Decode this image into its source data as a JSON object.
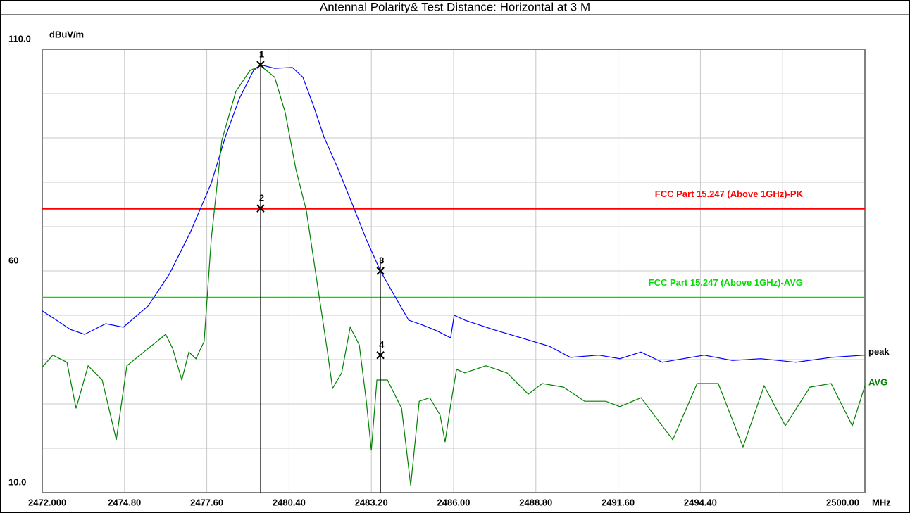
{
  "chart_data": {
    "type": "line",
    "title": "Antennal Polarity& Test Distance: Horizontal at 3 M",
    "y_unit": "dBuV/m",
    "x_unit": "MHz",
    "xlim": [
      2472,
      2500
    ],
    "ylim": [
      10,
      110
    ],
    "xticks": [
      {
        "value": 2472,
        "label": "2472.000"
      },
      {
        "value": 2474.8,
        "label": "2474.80"
      },
      {
        "value": 2477.6,
        "label": "2477.60"
      },
      {
        "value": 2480.4,
        "label": "2480.40"
      },
      {
        "value": 2483.2,
        "label": "2483.20"
      },
      {
        "value": 2486,
        "label": "2486.00"
      },
      {
        "value": 2488.8,
        "label": "2488.80"
      },
      {
        "value": 2491.6,
        "label": "2491.60"
      },
      {
        "value": 2494.4,
        "label": "2494.40"
      },
      {
        "value": 2500,
        "label": "2500.00"
      }
    ],
    "xgrid": [
      2474.8,
      2477.6,
      2480.4,
      2483.2,
      2486,
      2488.8,
      2491.6,
      2494.4,
      2497.2
    ],
    "yticks": [
      {
        "value": 10,
        "label": "10.0"
      },
      60,
      {
        "value": 110,
        "label": "110.0"
      }
    ],
    "ygrid": [
      20,
      30,
      40,
      50,
      60,
      70,
      80,
      90,
      100
    ],
    "grid": true,
    "limits": [
      {
        "name": "FCC Part 15.247 (Above 1GHz)-PK",
        "color": "#ff0000",
        "value": 74
      },
      {
        "name": "FCC Part 15.247 (Above 1GHz)-AVG",
        "color": "#00e000",
        "value": 54
      }
    ],
    "series": [
      {
        "name": "peak",
        "color": "#0000ff",
        "x": [
          2472.0,
          2472.48,
          2472.96,
          2473.44,
          2474.16,
          2474.76,
          2475.6,
          2476.32,
          2477.04,
          2477.75,
          2478.23,
          2478.71,
          2479.19,
          2479.43,
          2479.91,
          2480.51,
          2480.87,
          2481.23,
          2481.59,
          2482.07,
          2482.55,
          2483.03,
          2483.51,
          2483.99,
          2484.47,
          2484.95,
          2485.43,
          2485.9,
          2486.02,
          2486.38,
          2487.34,
          2488.3,
          2489.26,
          2489.98,
          2490.94,
          2491.66,
          2492.38,
          2493.1,
          2493.82,
          2494.53,
          2495.49,
          2496.45,
          2497.65,
          2498.85,
          2500.0
        ],
        "values": [
          51.0,
          48.9,
          46.8,
          45.7,
          48.1,
          47.3,
          52.1,
          59.2,
          68.7,
          79.8,
          90.2,
          98.9,
          105.2,
          106.5,
          105.7,
          105.9,
          103.7,
          97.3,
          90.2,
          83.0,
          75.1,
          67.1,
          60.0,
          54.4,
          48.9,
          47.8,
          46.5,
          44.9,
          50.0,
          48.9,
          46.8,
          44.9,
          43.0,
          40.5,
          41.0,
          40.2,
          41.7,
          39.4,
          40.2,
          41.0,
          39.8,
          40.2,
          39.4,
          40.5,
          41.0
        ]
      },
      {
        "name": "AVG",
        "color": "#008000",
        "x": [
          2472.0,
          2472.36,
          2472.84,
          2473.15,
          2473.56,
          2474.04,
          2474.52,
          2474.88,
          2475.6,
          2476.2,
          2476.44,
          2476.75,
          2476.99,
          2477.23,
          2477.51,
          2477.75,
          2478.11,
          2478.59,
          2479.07,
          2479.43,
          2479.91,
          2480.27,
          2480.63,
          2480.99,
          2481.35,
          2481.71,
          2481.88,
          2482.19,
          2482.48,
          2482.79,
          2483.03,
          2483.2,
          2483.39,
          2483.75,
          2484.23,
          2484.54,
          2484.83,
          2485.19,
          2485.54,
          2485.71,
          2485.9,
          2486.1,
          2486.38,
          2487.1,
          2487.82,
          2488.54,
          2489.02,
          2489.74,
          2490.46,
          2491.18,
          2491.66,
          2492.38,
          2493.46,
          2494.29,
          2495.01,
          2495.85,
          2496.57,
          2497.29,
          2498.13,
          2498.85,
          2499.57,
          2500.0
        ],
        "values": [
          38.3,
          41.0,
          39.4,
          29.0,
          38.6,
          35.4,
          21.9,
          38.6,
          42.5,
          45.7,
          42.5,
          35.4,
          41.7,
          40.2,
          44.1,
          67.1,
          89.4,
          100.5,
          105.2,
          106.3,
          103.7,
          95.7,
          83.0,
          73.5,
          57.6,
          41.7,
          33.5,
          37.0,
          47.3,
          43.3,
          30.6,
          19.5,
          35.4,
          35.4,
          29.0,
          11.6,
          30.6,
          31.4,
          27.5,
          21.4,
          29.8,
          37.8,
          37.0,
          38.6,
          37.0,
          32.2,
          34.6,
          33.8,
          30.6,
          30.6,
          29.4,
          31.4,
          21.9,
          34.6,
          34.6,
          20.3,
          34.1,
          25.1,
          33.8,
          34.6,
          25.1,
          34.1
        ]
      }
    ],
    "markers": [
      {
        "label": "1",
        "x": 2479.43,
        "y": 106.5
      },
      {
        "label": "2",
        "x": 2479.43,
        "y": 74.1
      },
      {
        "label": "3",
        "x": 2483.51,
        "y": 60.0
      },
      {
        "label": "4",
        "x": 2483.51,
        "y": 41.0
      }
    ]
  }
}
